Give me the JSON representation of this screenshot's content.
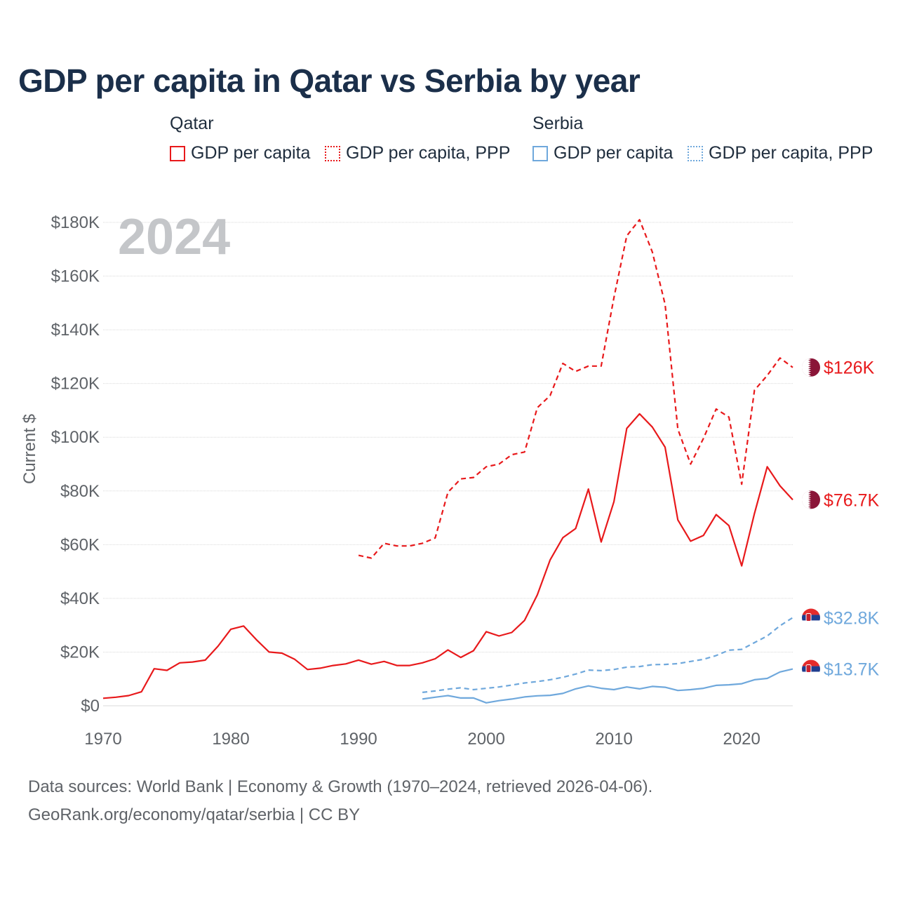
{
  "title": "GDP per capita in Qatar vs Serbia by year",
  "legend": {
    "groups": [
      {
        "country": "Qatar",
        "items": [
          {
            "label": "GDP per capita",
            "style": "solid"
          },
          {
            "label": "GDP per capita, PPP",
            "style": "dotted"
          }
        ]
      },
      {
        "country": "Serbia",
        "items": [
          {
            "label": "GDP per capita",
            "style": "solid"
          },
          {
            "label": "GDP per capita, PPP",
            "style": "dotted"
          }
        ]
      }
    ]
  },
  "colors": {
    "qatar": "#e8191b",
    "serbia": "#6fa8dc",
    "grid": "#d9d9d9",
    "axis_text": "#5f6368",
    "year_watermark": "#c4c6c9"
  },
  "year_watermark": "2024",
  "footer": {
    "line1": "Data sources: World Bank | Economy & Growth (1970–2024, retrieved 2026-04-06).",
    "line2": "GeoRank.org/economy/qatar/serbia | CC BY"
  },
  "chart_data": {
    "type": "line",
    "title": "GDP per capita in Qatar vs Serbia by year",
    "xlabel": "",
    "ylabel": "Current $",
    "xlim": [
      1970,
      2024
    ],
    "ylim": [
      0,
      180000
    ],
    "grid": true,
    "legend_position": "top",
    "x_ticks": [
      1970,
      1980,
      1990,
      2000,
      2010,
      2020
    ],
    "x_tick_labels": [
      "1970",
      "1980",
      "1990",
      "2000",
      "2010",
      "2020"
    ],
    "y_ticks": [
      0,
      20000,
      40000,
      60000,
      80000,
      100000,
      120000,
      140000,
      160000,
      180000
    ],
    "y_tick_labels": [
      "$0",
      "$20K",
      "$40K",
      "$60K",
      "$80K",
      "$100K",
      "$120K",
      "$140K",
      "$160K",
      "$180K"
    ],
    "series": [
      {
        "name": "Qatar GDP per capita, PPP",
        "country": "Qatar",
        "color": "#e8191b",
        "dash": "dashed",
        "end_label": "$126K",
        "x": [
          1990,
          1991,
          1992,
          1993,
          1994,
          1995,
          1996,
          1997,
          1998,
          1999,
          2000,
          2001,
          2002,
          2003,
          2004,
          2005,
          2006,
          2007,
          2008,
          2009,
          2010,
          2011,
          2012,
          2013,
          2014,
          2015,
          2016,
          2017,
          2018,
          2019,
          2020,
          2021,
          2022,
          2023,
          2024
        ],
        "values": [
          56000,
          55000,
          60500,
          59500,
          59500,
          60500,
          62500,
          79500,
          84500,
          85000,
          89000,
          90000,
          93500,
          94500,
          111000,
          115500,
          127500,
          124500,
          126500,
          126500,
          152000,
          175000,
          181000,
          169000,
          149500,
          103000,
          90000,
          99500,
          110500,
          107500,
          82500,
          117500,
          123000,
          129500,
          126000
        ]
      },
      {
        "name": "Qatar GDP per capita",
        "country": "Qatar",
        "color": "#e8191b",
        "dash": "solid",
        "end_label": "$76.7K",
        "x": [
          1970,
          1971,
          1972,
          1973,
          1974,
          1975,
          1976,
          1977,
          1978,
          1979,
          1980,
          1981,
          1982,
          1983,
          1984,
          1985,
          1986,
          1987,
          1988,
          1989,
          1990,
          1991,
          1992,
          1993,
          1994,
          1995,
          1996,
          1997,
          1998,
          1999,
          2000,
          2001,
          2002,
          2003,
          2004,
          2005,
          2006,
          2007,
          2008,
          2009,
          2010,
          2011,
          2012,
          2013,
          2014,
          2015,
          2016,
          2017,
          2018,
          2019,
          2020,
          2021,
          2022,
          2023,
          2024
        ],
        "values": [
          2800,
          3200,
          3800,
          5200,
          13800,
          13200,
          16000,
          16300,
          17000,
          22200,
          28500,
          29700,
          24600,
          20000,
          19600,
          17300,
          13500,
          14000,
          15000,
          15600,
          17000,
          15500,
          16500,
          15000,
          15000,
          16000,
          17500,
          20800,
          18000,
          20500,
          27600,
          26000,
          27300,
          31800,
          41300,
          54300,
          62600,
          66000,
          80700,
          61000,
          76000,
          103300,
          108700,
          103800,
          96300,
          69200,
          61300,
          63400,
          71200,
          67100,
          52100,
          71600,
          89000,
          81900,
          76700
        ]
      },
      {
        "name": "Serbia GDP per capita, PPP",
        "country": "Serbia",
        "color": "#6fa8dc",
        "dash": "dashed",
        "end_label": "$32.8K",
        "x": [
          1995,
          1996,
          1997,
          1998,
          1999,
          2000,
          2001,
          2002,
          2003,
          2004,
          2005,
          2006,
          2007,
          2008,
          2009,
          2010,
          2011,
          2012,
          2013,
          2014,
          2015,
          2016,
          2017,
          2018,
          2019,
          2020,
          2021,
          2022,
          2023,
          2024
        ],
        "values": [
          5000,
          5500,
          6200,
          6700,
          6000,
          6500,
          7000,
          7700,
          8500,
          9000,
          9700,
          10600,
          11800,
          13300,
          13100,
          13500,
          14400,
          14600,
          15300,
          15400,
          15700,
          16500,
          17300,
          18700,
          20700,
          21000,
          23500,
          26000,
          29800,
          32800
        ]
      },
      {
        "name": "Serbia GDP per capita",
        "country": "Serbia",
        "color": "#6fa8dc",
        "dash": "solid",
        "end_label": "$13.7K",
        "x": [
          1995,
          1996,
          1997,
          1998,
          1999,
          2000,
          2001,
          2002,
          2003,
          2004,
          2005,
          2006,
          2007,
          2008,
          2009,
          2010,
          2011,
          2012,
          2013,
          2014,
          2015,
          2016,
          2017,
          2018,
          2019,
          2020,
          2021,
          2022,
          2023,
          2024
        ],
        "values": [
          2500,
          3200,
          3800,
          2900,
          2900,
          1100,
          1900,
          2500,
          3300,
          3700,
          3900,
          4600,
          6300,
          7400,
          6500,
          6000,
          7000,
          6300,
          7200,
          6900,
          5700,
          6000,
          6500,
          7600,
          7800,
          8200,
          9700,
          10200,
          12600,
          13700
        ]
      }
    ]
  }
}
